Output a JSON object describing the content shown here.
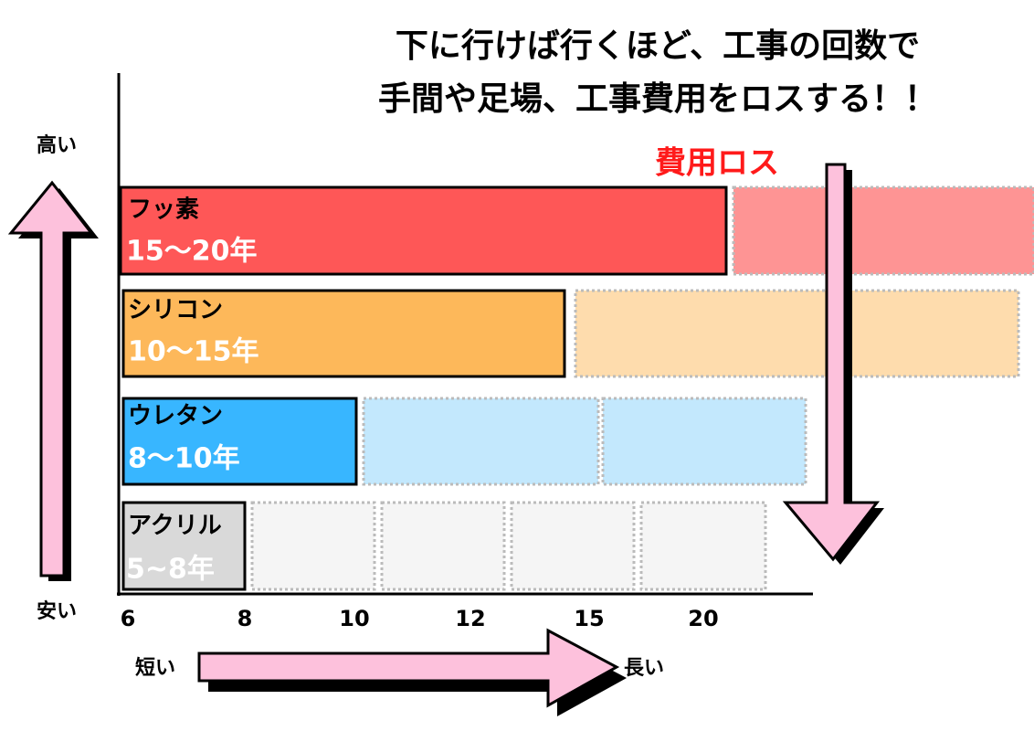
{
  "title": [
    "下に行けば行くほど、工事の回数で",
    "手間や足場、工事費用をロスする！！"
  ],
  "loss_label": "費用ロス",
  "y_axis": {
    "high": "高い",
    "low": "安い"
  },
  "x_axis": {
    "ticks": [
      6,
      8,
      10,
      12,
      15,
      20
    ],
    "short": "短い",
    "long": "長い"
  },
  "bars": [
    {
      "name": "フッ素",
      "years": "15〜20年"
    },
    {
      "name": "シリコン",
      "years": "10〜15年"
    },
    {
      "name": "ウレタン",
      "years": "8〜10年"
    },
    {
      "name": "アクリル",
      "years": "5~8年"
    }
  ]
}
